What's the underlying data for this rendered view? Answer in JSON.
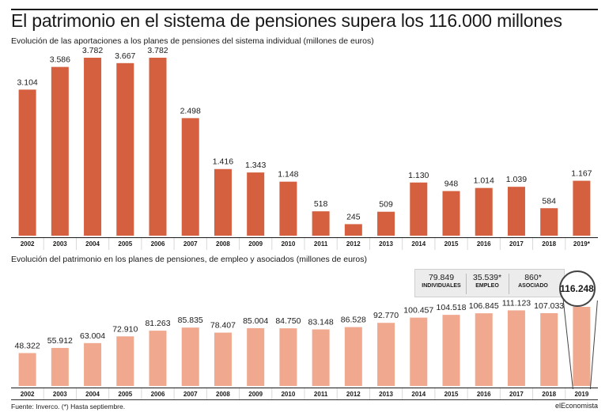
{
  "title": "El patrimonio en el sistema de pensiones supera los 116.000 millones",
  "chart_data": [
    {
      "type": "bar",
      "title": "Evolución de las aportaciones a los planes de pensiones del sistema individual (millones de euros)",
      "categories": [
        "2002",
        "2003",
        "2004",
        "2005",
        "2006",
        "2007",
        "2008",
        "2009",
        "2010",
        "2011",
        "2012",
        "2013",
        "2014",
        "2015",
        "2016",
        "2017",
        "2018",
        "2019*"
      ],
      "values": [
        3104,
        3586,
        3782,
        3667,
        3782,
        2498,
        1416,
        1343,
        1148,
        518,
        245,
        509,
        1130,
        948,
        1014,
        1039,
        584,
        1167
      ],
      "value_labels": [
        "3.104",
        "3.586",
        "3.782",
        "3.667",
        "3.782",
        "2.498",
        "1.416",
        "1.343",
        "1.148",
        "518",
        "245",
        "509",
        "1.130",
        "948",
        "1.014",
        "1.039",
        "584",
        "1.167"
      ],
      "ylim": [
        0,
        4000
      ],
      "color": "#d4603f",
      "grid": false
    },
    {
      "type": "bar",
      "title": "Evolución del patrimonio en los planes de pensiones, de empleo y asociados (millones de euros)",
      "categories": [
        "2002",
        "2003",
        "2004",
        "2005",
        "2006",
        "2007",
        "2008",
        "2009",
        "2010",
        "2011",
        "2012",
        "2013",
        "2014",
        "2015",
        "2016",
        "2017",
        "2018",
        "2019"
      ],
      "values": [
        48322,
        55912,
        63004,
        72910,
        81263,
        85835,
        78407,
        85004,
        84750,
        83148,
        86528,
        92770,
        100457,
        104518,
        106845,
        111123,
        107033,
        116248
      ],
      "value_labels": [
        "48.322",
        "55.912",
        "63.004",
        "72.910",
        "81.263",
        "85.835",
        "78.407",
        "85.004",
        "84.750",
        "83.148",
        "86.528",
        "92.770",
        "100.457",
        "104.518",
        "106.845",
        "111.123",
        "107.033",
        ""
      ],
      "ylim": [
        0,
        200000
      ],
      "color": "#f0a98f",
      "grid": false,
      "highlight": {
        "value": "116.248",
        "breakdown": [
          {
            "value": "79.849",
            "label": "INDIVIDUALES"
          },
          {
            "value": "35.539*",
            "label": "EMPLEO"
          },
          {
            "value": "860*",
            "label": "ASOCIADO"
          }
        ]
      }
    }
  ],
  "footer": {
    "source": "Fuente: Inverco. (*) Hasta septiembre.",
    "brand": "elEconomista"
  }
}
